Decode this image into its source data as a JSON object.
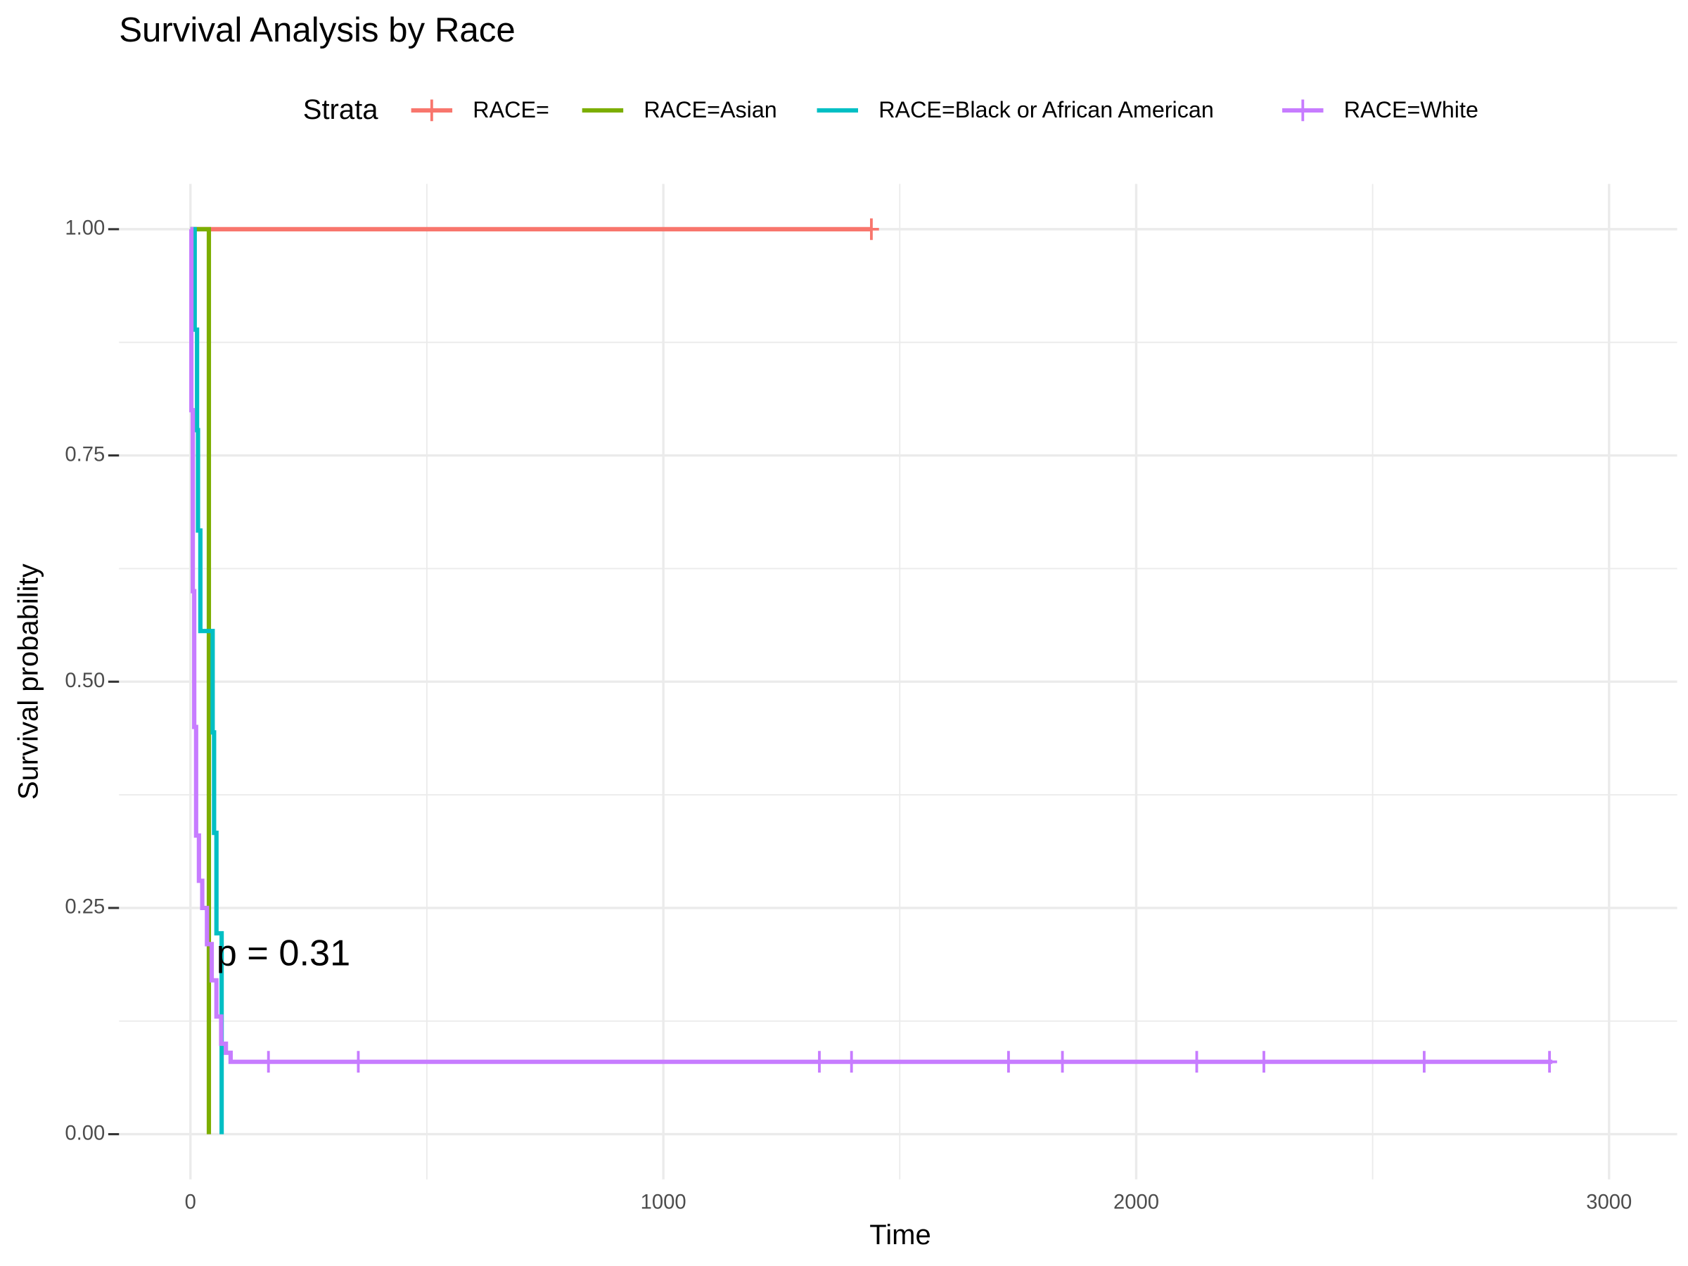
{
  "chart_data": {
    "type": "step",
    "title": "Survival Analysis by Race",
    "x_label": "Time",
    "y_label": "Survival probability",
    "legend_title": "Strata",
    "legend_position": "top",
    "annotation": "p = 0.31",
    "grid": true,
    "xlim": [
      -151,
      3144
    ],
    "ylim": [
      -0.05,
      1.05
    ],
    "xticks": [
      0,
      1000,
      2000,
      3000
    ],
    "yticks": [
      {
        "value": 0,
        "label": "0.00"
      },
      {
        "value": 0.25,
        "label": "0.25"
      },
      {
        "value": 0.5,
        "label": "0.50"
      },
      {
        "value": 0.75,
        "label": "0.75"
      },
      {
        "value": 1,
        "label": "1.00"
      }
    ],
    "series": [
      {
        "name": "RACE=",
        "color": "#F8766D",
        "x": [
          0,
          1440
        ],
        "values": [
          1,
          1
        ],
        "censored": {
          "x": [
            1440
          ],
          "values": [
            1
          ]
        }
      },
      {
        "name": "RACE=Asian",
        "color": "#7CAE00",
        "x": [
          0,
          39
        ],
        "values": [
          1,
          0
        ]
      },
      {
        "name": "RACE=Black or African American",
        "color": "#00BFC4",
        "x": [
          0,
          9,
          14,
          16,
          21,
          47,
          50,
          55,
          66
        ],
        "values": [
          1,
          0.889,
          0.778,
          0.667,
          0.556,
          0.444,
          0.333,
          0.222,
          0
        ]
      },
      {
        "name": "RACE=White",
        "color": "#C77CFF",
        "x": [
          0,
          2,
          5,
          8,
          12,
          18,
          25,
          35,
          45,
          55,
          65,
          75,
          85,
          2880
        ],
        "values": [
          1,
          0.8,
          0.6,
          0.45,
          0.33,
          0.28,
          0.25,
          0.21,
          0.17,
          0.13,
          0.1,
          0.09,
          0.08,
          0.08
        ],
        "censored": {
          "x": [
            165,
            355,
            1330,
            1398,
            1730,
            1844,
            2128,
            2270,
            2609,
            2874
          ],
          "values": [
            0.08,
            0.08,
            0.08,
            0.08,
            0.08,
            0.08,
            0.08,
            0.08,
            0.08,
            0.08
          ]
        }
      }
    ]
  }
}
